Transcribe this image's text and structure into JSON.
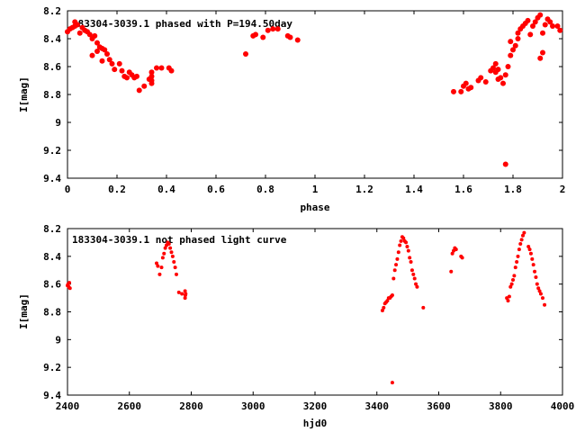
{
  "chart_data": [
    {
      "type": "scatter",
      "title": "183304-3039.1 phased with P=194.50day",
      "xlabel": "phase",
      "ylabel": "I[mag]",
      "xlim": [
        0,
        2
      ],
      "ylim": [
        8.2,
        9.4
      ],
      "y_inverted": true,
      "grid": false,
      "xticks": [
        "0",
        "0.2",
        "0.4",
        "0.6",
        "0.8",
        "1",
        "1.2",
        "1.4",
        "1.6",
        "1.8",
        "2"
      ],
      "yticks": [
        "8.2",
        "8.4",
        "8.6",
        "8.8",
        "9",
        "9.2",
        "9.4"
      ],
      "marker_color": "#ff0000",
      "points": [
        [
          0.0,
          8.35
        ],
        [
          0.01,
          8.33
        ],
        [
          0.02,
          8.32
        ],
        [
          0.03,
          8.31
        ],
        [
          0.04,
          8.3
        ],
        [
          0.03,
          8.28
        ],
        [
          0.05,
          8.36
        ],
        [
          0.06,
          8.32
        ],
        [
          0.07,
          8.34
        ],
        [
          0.08,
          8.35
        ],
        [
          0.09,
          8.37
        ],
        [
          0.1,
          8.4
        ],
        [
          0.11,
          8.38
        ],
        [
          0.12,
          8.43
        ],
        [
          0.1,
          8.52
        ],
        [
          0.12,
          8.49
        ],
        [
          0.13,
          8.46
        ],
        [
          0.14,
          8.47
        ],
        [
          0.15,
          8.48
        ],
        [
          0.14,
          8.56
        ],
        [
          0.16,
          8.51
        ],
        [
          0.17,
          8.55
        ],
        [
          0.18,
          8.58
        ],
        [
          0.19,
          8.62
        ],
        [
          0.21,
          8.58
        ],
        [
          0.22,
          8.63
        ],
        [
          0.23,
          8.67
        ],
        [
          0.24,
          8.68
        ],
        [
          0.25,
          8.64
        ],
        [
          0.26,
          8.66
        ],
        [
          0.27,
          8.68
        ],
        [
          0.28,
          8.67
        ],
        [
          0.29,
          8.77
        ],
        [
          0.31,
          8.74
        ],
        [
          0.33,
          8.69
        ],
        [
          0.34,
          8.64
        ],
        [
          0.34,
          8.67
        ],
        [
          0.34,
          8.7
        ],
        [
          0.34,
          8.72
        ],
        [
          0.36,
          8.61
        ],
        [
          0.38,
          8.61
        ],
        [
          0.41,
          8.61
        ],
        [
          0.42,
          8.63
        ],
        [
          0.72,
          8.51
        ],
        [
          0.75,
          8.38
        ],
        [
          0.76,
          8.37
        ],
        [
          0.79,
          8.39
        ],
        [
          0.81,
          8.34
        ],
        [
          0.83,
          8.33
        ],
        [
          0.85,
          8.33
        ],
        [
          0.89,
          8.38
        ],
        [
          0.9,
          8.39
        ],
        [
          0.93,
          8.41
        ],
        [
          1.56,
          8.78
        ],
        [
          1.59,
          8.78
        ],
        [
          1.6,
          8.74
        ],
        [
          1.61,
          8.72
        ],
        [
          1.62,
          8.76
        ],
        [
          1.63,
          8.75
        ],
        [
          1.66,
          8.7
        ],
        [
          1.67,
          8.68
        ],
        [
          1.69,
          8.71
        ],
        [
          1.71,
          8.63
        ],
        [
          1.72,
          8.61
        ],
        [
          1.73,
          8.58
        ],
        [
          1.73,
          8.64
        ],
        [
          1.74,
          8.62
        ],
        [
          1.74,
          8.69
        ],
        [
          1.75,
          8.68
        ],
        [
          1.76,
          8.72
        ],
        [
          1.77,
          8.66
        ],
        [
          1.78,
          8.6
        ],
        [
          1.79,
          8.52
        ],
        [
          1.8,
          8.48
        ],
        [
          1.79,
          8.42
        ],
        [
          1.81,
          8.45
        ],
        [
          1.82,
          8.36
        ],
        [
          1.82,
          8.4
        ],
        [
          1.83,
          8.33
        ],
        [
          1.84,
          8.31
        ],
        [
          1.85,
          8.29
        ],
        [
          1.86,
          8.27
        ],
        [
          1.87,
          8.37
        ],
        [
          1.88,
          8.31
        ],
        [
          1.89,
          8.28
        ],
        [
          1.9,
          8.25
        ],
        [
          1.91,
          8.23
        ],
        [
          1.92,
          8.36
        ],
        [
          1.93,
          8.3
        ],
        [
          1.94,
          8.26
        ],
        [
          1.95,
          8.28
        ],
        [
          1.96,
          8.31
        ],
        [
          1.98,
          8.31
        ],
        [
          1.99,
          8.34
        ],
        [
          1.91,
          8.54
        ],
        [
          1.92,
          8.5
        ],
        [
          1.77,
          9.3
        ]
      ]
    },
    {
      "type": "scatter",
      "title": "183304-3039.1 not phased light curve",
      "xlabel": "hjd0",
      "ylabel": "I[mag]",
      "xlim": [
        2400,
        4000
      ],
      "ylim": [
        8.2,
        9.4
      ],
      "y_inverted": true,
      "grid": false,
      "xticks": [
        "2400",
        "2600",
        "2800",
        "3000",
        "3200",
        "3400",
        "3600",
        "3800",
        "4000"
      ],
      "yticks": [
        "8.2",
        "8.4",
        "8.6",
        "8.8",
        "9",
        "9.2",
        "9.4"
      ],
      "marker_color": "#ff0000",
      "points": [
        [
          2400,
          8.61
        ],
        [
          2402,
          8.6
        ],
        [
          2404,
          8.62
        ],
        [
          2406,
          8.59
        ],
        [
          2408,
          8.63
        ],
        [
          2688,
          8.45
        ],
        [
          2692,
          8.47
        ],
        [
          2698,
          8.53
        ],
        [
          2704,
          8.48
        ],
        [
          2708,
          8.41
        ],
        [
          2712,
          8.38
        ],
        [
          2716,
          8.34
        ],
        [
          2720,
          8.32
        ],
        [
          2724,
          8.3
        ],
        [
          2728,
          8.31
        ],
        [
          2732,
          8.34
        ],
        [
          2736,
          8.37
        ],
        [
          2740,
          8.4
        ],
        [
          2744,
          8.44
        ],
        [
          2748,
          8.48
        ],
        [
          2752,
          8.53
        ],
        [
          2760,
          8.66
        ],
        [
          2770,
          8.67
        ],
        [
          2780,
          8.65
        ],
        [
          2780,
          8.7
        ],
        [
          2781,
          8.68
        ],
        [
          2782,
          8.67
        ],
        [
          3418,
          8.79
        ],
        [
          3422,
          8.77
        ],
        [
          3426,
          8.74
        ],
        [
          3430,
          8.73
        ],
        [
          3434,
          8.72
        ],
        [
          3438,
          8.7
        ],
        [
          3442,
          8.7
        ],
        [
          3446,
          8.69
        ],
        [
          3450,
          8.68
        ],
        [
          3454,
          8.56
        ],
        [
          3458,
          8.5
        ],
        [
          3462,
          8.46
        ],
        [
          3466,
          8.42
        ],
        [
          3470,
          8.37
        ],
        [
          3474,
          8.32
        ],
        [
          3478,
          8.29
        ],
        [
          3482,
          8.26
        ],
        [
          3486,
          8.27
        ],
        [
          3490,
          8.29
        ],
        [
          3494,
          8.3
        ],
        [
          3498,
          8.33
        ],
        [
          3502,
          8.36
        ],
        [
          3506,
          8.41
        ],
        [
          3510,
          8.44
        ],
        [
          3514,
          8.5
        ],
        [
          3518,
          8.53
        ],
        [
          3522,
          8.56
        ],
        [
          3526,
          8.6
        ],
        [
          3530,
          8.62
        ],
        [
          3550,
          8.77
        ],
        [
          3450,
          9.31
        ],
        [
          3640,
          8.51
        ],
        [
          3644,
          8.38
        ],
        [
          3648,
          8.36
        ],
        [
          3652,
          8.34
        ],
        [
          3656,
          8.35
        ],
        [
          3672,
          8.4
        ],
        [
          3676,
          8.41
        ],
        [
          3820,
          8.7
        ],
        [
          3824,
          8.72
        ],
        [
          3828,
          8.69
        ],
        [
          3832,
          8.62
        ],
        [
          3836,
          8.6
        ],
        [
          3840,
          8.57
        ],
        [
          3844,
          8.54
        ],
        [
          3848,
          8.48
        ],
        [
          3852,
          8.44
        ],
        [
          3856,
          8.4
        ],
        [
          3860,
          8.35
        ],
        [
          3864,
          8.31
        ],
        [
          3868,
          8.28
        ],
        [
          3872,
          8.25
        ],
        [
          3876,
          8.23
        ],
        [
          3890,
          8.33
        ],
        [
          3894,
          8.35
        ],
        [
          3898,
          8.38
        ],
        [
          3902,
          8.42
        ],
        [
          3906,
          8.46
        ],
        [
          3910,
          8.51
        ],
        [
          3914,
          8.55
        ],
        [
          3918,
          8.6
        ],
        [
          3922,
          8.63
        ],
        [
          3926,
          8.65
        ],
        [
          3930,
          8.67
        ],
        [
          3936,
          8.7
        ],
        [
          3942,
          8.75
        ]
      ]
    }
  ]
}
